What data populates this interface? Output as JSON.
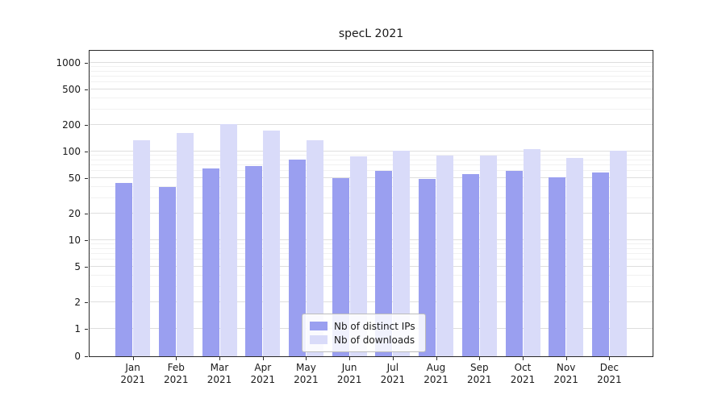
{
  "chart_data": {
    "type": "bar",
    "title": "specL 2021",
    "categories": [
      "Jan",
      "Feb",
      "Mar",
      "Apr",
      "May",
      "Jun",
      "Jul",
      "Aug",
      "Sep",
      "Oct",
      "Nov",
      "Dec"
    ],
    "year_label": "2021",
    "series": [
      {
        "name": "Nb of distinct IPs",
        "color": "#9a9ff0",
        "values": [
          44,
          40,
          65,
          68,
          81,
          50,
          60,
          49,
          56,
          60,
          51,
          58
        ]
      },
      {
        "name": "Nb of downloads",
        "color": "#d9dbf9",
        "values": [
          135,
          162,
          205,
          172,
          135,
          88,
          102,
          90,
          91,
          107,
          85,
          102
        ]
      }
    ],
    "yscale": "symlog",
    "yticks": [
      0,
      1,
      2,
      5,
      10,
      20,
      50,
      100,
      200,
      500,
      1000
    ],
    "ylim": [
      0,
      1000
    ],
    "xlabel": "",
    "ylabel": "",
    "grid": true,
    "legend_position": "lower center"
  },
  "colors": {
    "major_grid": "#dedede",
    "minor_grid": "#f1f1f1",
    "axis": "#2b2b2b"
  }
}
